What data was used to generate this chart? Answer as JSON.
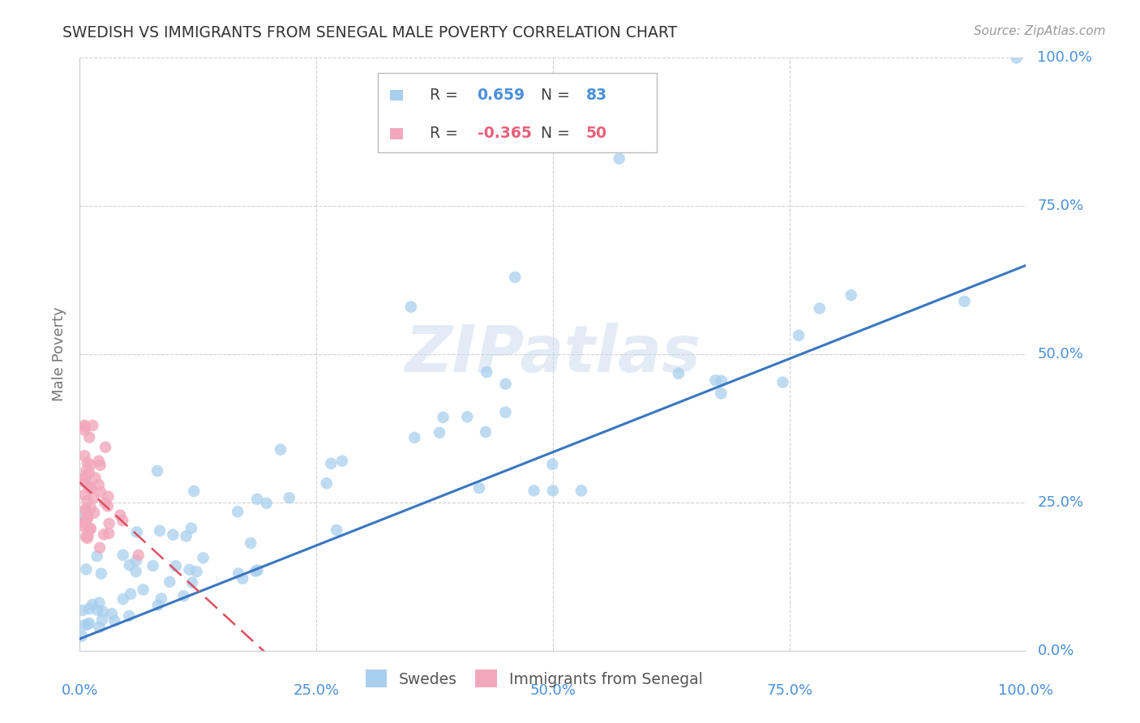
{
  "title": "SWEDISH VS IMMIGRANTS FROM SENEGAL MALE POVERTY CORRELATION CHART",
  "source": "Source: ZipAtlas.com",
  "ylabel": "Male Poverty",
  "blue_R": 0.659,
  "blue_N": 83,
  "pink_R": -0.365,
  "pink_N": 50,
  "blue_color": "#A8CFEE",
  "pink_color": "#F2A8BC",
  "blue_line_color": "#3B76C0",
  "pink_line_color": "#D95060",
  "watermark": "ZIPatlas",
  "legend_label_blue": "Swedes",
  "legend_label_pink": "Immigrants from Senegal",
  "background_color": "#ffffff",
  "grid_color": "#cccccc",
  "title_color": "#333333",
  "axis_label_color": "#777777",
  "tick_label_color": "#4A90D9"
}
